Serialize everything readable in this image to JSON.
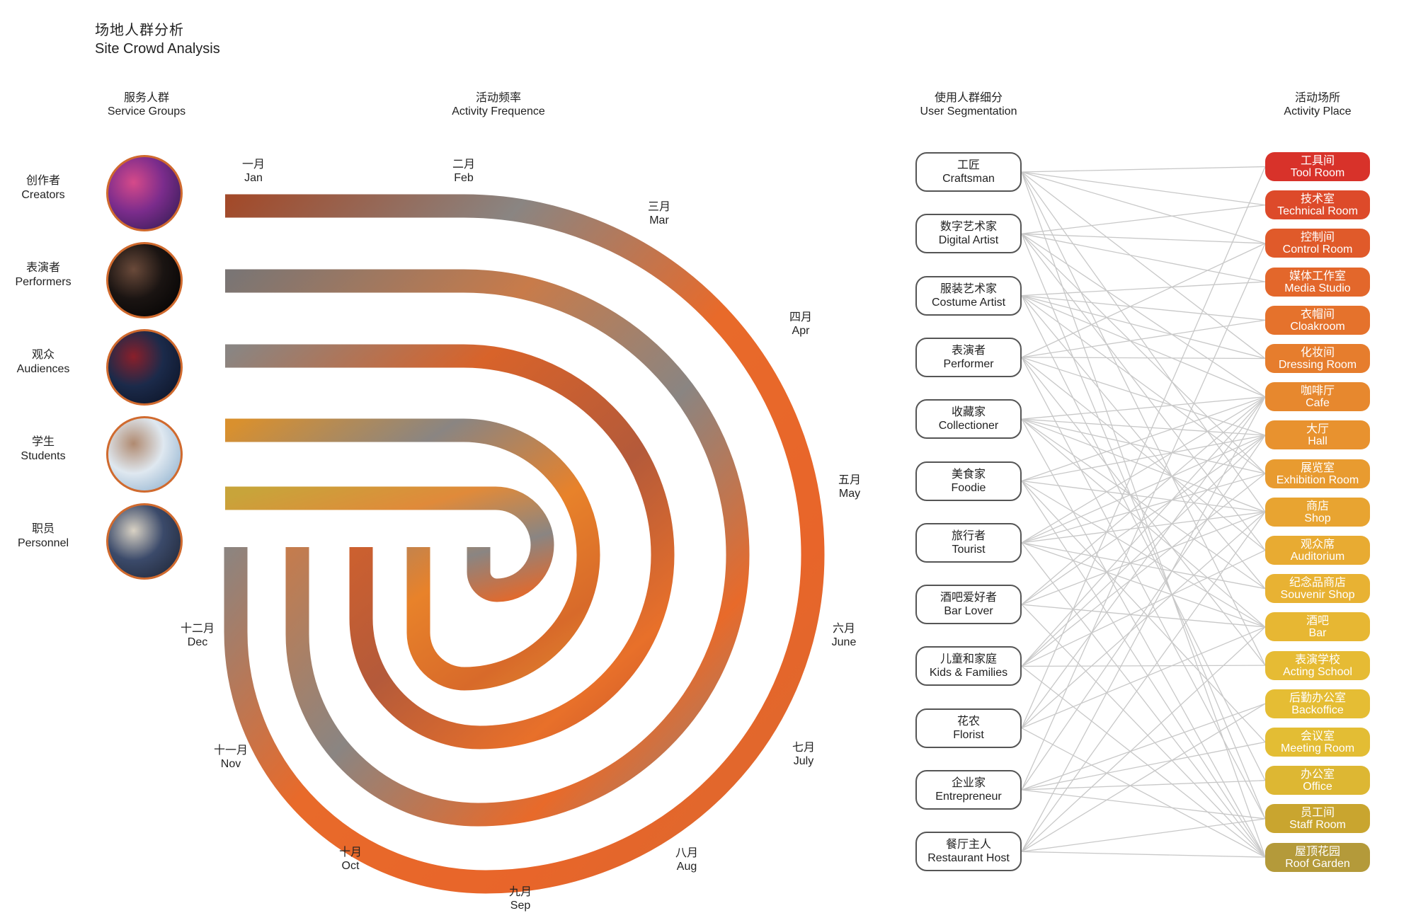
{
  "title": {
    "cn": "场地人群分析",
    "en": "Site Crowd Analysis"
  },
  "headers": {
    "groups": {
      "cn": "服务人群",
      "en": "Service Groups"
    },
    "frequency": {
      "cn": "活动频率",
      "en": "Activity Frequence"
    },
    "segmentation": {
      "cn": "使用人群细分",
      "en": "User Segmentation"
    },
    "place": {
      "cn": "活动场所",
      "en": "Activity Place"
    }
  },
  "groups": [
    {
      "cn": "创作者",
      "en": "Creators",
      "icon": "creator-photo-icon",
      "colors": [
        "#7b2c8c",
        "#d64a8a",
        "#2a1a4a"
      ]
    },
    {
      "cn": "表演者",
      "en": "Performers",
      "icon": "performer-photo-icon",
      "colors": [
        "#1a1412",
        "#6a4a3a",
        "#000000"
      ]
    },
    {
      "cn": "观众",
      "en": "Audiences",
      "icon": "audience-photo-icon",
      "colors": [
        "#1b2a4a",
        "#8a1f2a",
        "#0a1020"
      ]
    },
    {
      "cn": "学生",
      "en": "Students",
      "icon": "students-photo-icon",
      "colors": [
        "#dfe8f0",
        "#b08a70",
        "#7fa6c8"
      ]
    },
    {
      "cn": "职员",
      "en": "Personnel",
      "icon": "personnel-photo-icon",
      "colors": [
        "#3b4a6a",
        "#d9d2c4",
        "#1c2230"
      ]
    }
  ],
  "months": [
    {
      "cn": "一月",
      "en": "Jan"
    },
    {
      "cn": "二月",
      "en": "Feb"
    },
    {
      "cn": "三月",
      "en": "Mar"
    },
    {
      "cn": "四月",
      "en": "Apr"
    },
    {
      "cn": "五月",
      "en": "May"
    },
    {
      "cn": "六月",
      "en": "June"
    },
    {
      "cn": "七月",
      "en": "July"
    },
    {
      "cn": "八月",
      "en": "Aug"
    },
    {
      "cn": "九月",
      "en": "Sep"
    },
    {
      "cn": "十月",
      "en": "Oct"
    },
    {
      "cn": "十一月",
      "en": "Nov"
    },
    {
      "cn": "十二月",
      "en": "Dec"
    }
  ],
  "track_colors": [
    "#a24a2a",
    "#8a8582",
    "#e86a2a",
    "#d99a3a",
    "#c8a43a"
  ],
  "segments": [
    {
      "cn": "工匠",
      "en": "Craftsman"
    },
    {
      "cn": "数字艺术家",
      "en": "Digital Artist"
    },
    {
      "cn": "服装艺术家",
      "en": "Costume Artist"
    },
    {
      "cn": "表演者",
      "en": "Performer"
    },
    {
      "cn": "收藏家",
      "en": "Collectioner"
    },
    {
      "cn": "美食家",
      "en": "Foodie"
    },
    {
      "cn": "旅行者",
      "en": "Tourist"
    },
    {
      "cn": "酒吧爱好者",
      "en": "Bar Lover"
    },
    {
      "cn": "儿童和家庭",
      "en": "Kids & Families"
    },
    {
      "cn": "花农",
      "en": "Florist"
    },
    {
      "cn": "企业家",
      "en": "Entrepreneur"
    },
    {
      "cn": "餐厅主人",
      "en": "Restaurant Host"
    }
  ],
  "places": [
    {
      "cn": "工具间",
      "en": "Tool Room",
      "color": "#d8322a"
    },
    {
      "cn": "技术室",
      "en": "Technical Room",
      "color": "#dd4a2a"
    },
    {
      "cn": "控制间",
      "en": "Control Room",
      "color": "#e05a2a"
    },
    {
      "cn": "媒体工作室",
      "en": "Media Studio",
      "color": "#e3672b"
    },
    {
      "cn": "衣帽间",
      "en": "Cloakroom",
      "color": "#e5722c"
    },
    {
      "cn": "化妆间",
      "en": "Dressing Room",
      "color": "#e67d2d"
    },
    {
      "cn": "咖啡厅",
      "en": "Cafe",
      "color": "#e7882e"
    },
    {
      "cn": "大厅",
      "en": "Hall",
      "color": "#e8922f"
    },
    {
      "cn": "展览室",
      "en": "Exhibition Room",
      "color": "#e89b30"
    },
    {
      "cn": "商店",
      "en": "Shop",
      "color": "#e8a431"
    },
    {
      "cn": "观众席",
      "en": "Auditorium",
      "color": "#e8ab32"
    },
    {
      "cn": "纪念品商店",
      "en": "Souvenir Shop",
      "color": "#e8b233"
    },
    {
      "cn": "酒吧",
      "en": "Bar",
      "color": "#e7b733"
    },
    {
      "cn": "表演学校",
      "en": "Acting School",
      "color": "#e6bb34"
    },
    {
      "cn": "后勤办公室",
      "en": "Backoffice",
      "color": "#e5bd34"
    },
    {
      "cn": "会议室",
      "en": "Meeting Room",
      "color": "#e3bd34"
    },
    {
      "cn": "办公室",
      "en": "Office",
      "color": "#ddb733"
    },
    {
      "cn": "员工间",
      "en": "Staff Room",
      "color": "#c9a52f"
    },
    {
      "cn": "屋顶花园",
      "en": "Roof Garden",
      "color": "#b49a3a"
    }
  ],
  "links": [
    [
      0,
      0
    ],
    [
      0,
      1
    ],
    [
      0,
      2
    ],
    [
      0,
      5
    ],
    [
      0,
      9
    ],
    [
      0,
      13
    ],
    [
      0,
      18
    ],
    [
      1,
      1
    ],
    [
      1,
      2
    ],
    [
      1,
      3
    ],
    [
      1,
      6
    ],
    [
      1,
      8
    ],
    [
      1,
      10
    ],
    [
      1,
      17
    ],
    [
      2,
      3
    ],
    [
      2,
      4
    ],
    [
      2,
      5
    ],
    [
      2,
      6
    ],
    [
      2,
      8
    ],
    [
      2,
      11
    ],
    [
      2,
      16
    ],
    [
      3,
      2
    ],
    [
      3,
      4
    ],
    [
      3,
      5
    ],
    [
      3,
      7
    ],
    [
      3,
      10
    ],
    [
      3,
      13
    ],
    [
      3,
      17
    ],
    [
      4,
      6
    ],
    [
      4,
      7
    ],
    [
      4,
      8
    ],
    [
      4,
      9
    ],
    [
      4,
      11
    ],
    [
      4,
      12
    ],
    [
      4,
      18
    ],
    [
      5,
      6
    ],
    [
      5,
      7
    ],
    [
      5,
      9
    ],
    [
      5,
      12
    ],
    [
      5,
      15
    ],
    [
      5,
      18
    ],
    [
      6,
      6
    ],
    [
      6,
      7
    ],
    [
      6,
      8
    ],
    [
      6,
      9
    ],
    [
      6,
      11
    ],
    [
      6,
      12
    ],
    [
      6,
      18
    ],
    [
      7,
      6
    ],
    [
      7,
      7
    ],
    [
      7,
      9
    ],
    [
      7,
      12
    ],
    [
      7,
      18
    ],
    [
      8,
      6
    ],
    [
      8,
      7
    ],
    [
      8,
      8
    ],
    [
      8,
      10
    ],
    [
      8,
      13
    ],
    [
      8,
      18
    ],
    [
      9,
      0
    ],
    [
      9,
      6
    ],
    [
      9,
      9
    ],
    [
      9,
      12
    ],
    [
      9,
      18
    ],
    [
      10,
      2
    ],
    [
      10,
      7
    ],
    [
      10,
      14
    ],
    [
      10,
      15
    ],
    [
      10,
      16
    ],
    [
      10,
      17
    ],
    [
      11,
      6
    ],
    [
      11,
      9
    ],
    [
      11,
      12
    ],
    [
      11,
      14
    ],
    [
      11,
      17
    ],
    [
      11,
      18
    ]
  ]
}
